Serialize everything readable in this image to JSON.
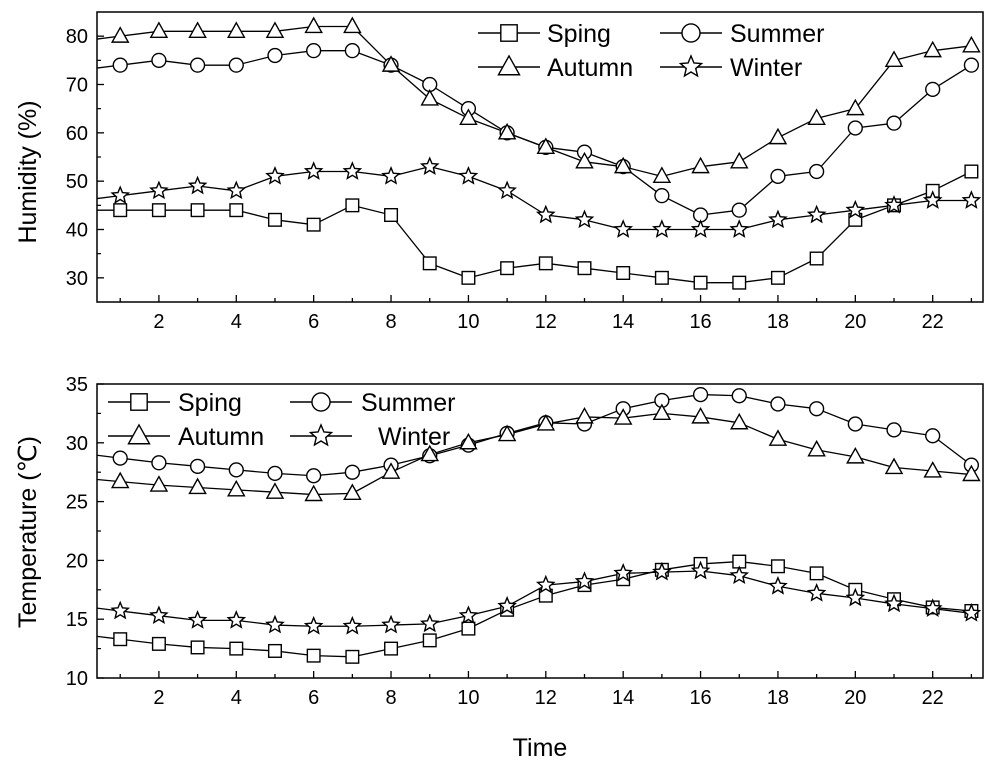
{
  "chart_data": [
    {
      "type": "line",
      "panel": "top",
      "title": "",
      "xlabel": "",
      "ylabel": "Humidity (%)",
      "xlim": [
        0.4,
        23.3
      ],
      "ylim": [
        25,
        85
      ],
      "xticks": [
        2,
        4,
        6,
        8,
        10,
        12,
        14,
        16,
        18,
        20,
        22
      ],
      "yticks": [
        30,
        40,
        50,
        60,
        70,
        80
      ],
      "grid": false,
      "legend_position": "top-right",
      "x": [
        1,
        2,
        3,
        4,
        5,
        6,
        7,
        8,
        9,
        10,
        11,
        12,
        13,
        14,
        15,
        16,
        17,
        18,
        19,
        20,
        21,
        22,
        23
      ],
      "series": [
        {
          "name": "Sping",
          "marker": "square",
          "values": [
            44,
            44,
            44,
            44,
            42,
            41,
            45,
            43,
            33,
            30,
            32,
            33,
            32,
            31,
            30,
            29,
            29,
            30,
            34,
            42,
            45,
            48,
            52
          ]
        },
        {
          "name": "Summer",
          "marker": "circle",
          "values": [
            74,
            75,
            74,
            74,
            76,
            77,
            77,
            74,
            70,
            65,
            60,
            57,
            56,
            53,
            47,
            43,
            44,
            51,
            52,
            61,
            62,
            69,
            74
          ]
        },
        {
          "name": "Autumn",
          "marker": "triangle",
          "values": [
            80,
            81,
            81,
            81,
            81,
            82,
            82,
            74,
            67,
            63,
            60,
            57,
            54,
            53,
            51,
            53,
            54,
            59,
            63,
            65,
            75,
            77,
            78
          ]
        },
        {
          "name": "Winter",
          "marker": "star",
          "values": [
            47,
            48,
            49,
            48,
            51,
            52,
            52,
            51,
            53,
            51,
            48,
            43,
            42,
            40,
            40,
            40,
            40,
            42,
            43,
            44,
            45,
            46,
            46
          ]
        }
      ]
    },
    {
      "type": "line",
      "panel": "bottom",
      "title": "",
      "xlabel": "Time",
      "ylabel": "Temperature (℃)",
      "xlim": [
        0.4,
        23.3
      ],
      "ylim": [
        10,
        35
      ],
      "xticks": [
        2,
        4,
        6,
        8,
        10,
        12,
        14,
        16,
        18,
        20,
        22
      ],
      "yticks": [
        10,
        15,
        20,
        25,
        30,
        35
      ],
      "grid": false,
      "legend_position": "top-left",
      "x": [
        1,
        2,
        3,
        4,
        5,
        6,
        7,
        8,
        9,
        10,
        11,
        12,
        13,
        14,
        15,
        16,
        17,
        18,
        19,
        20,
        21,
        22,
        23
      ],
      "series": [
        {
          "name": "Sping",
          "marker": "square",
          "values": [
            13.3,
            12.9,
            12.6,
            12.5,
            12.3,
            11.9,
            11.8,
            12.5,
            13.2,
            14.2,
            15.8,
            17.0,
            17.9,
            18.4,
            19.2,
            19.7,
            19.9,
            19.5,
            18.9,
            17.5,
            16.7,
            16.0,
            15.7
          ]
        },
        {
          "name": "Summer",
          "marker": "circle",
          "values": [
            28.7,
            28.3,
            28.0,
            27.7,
            27.4,
            27.2,
            27.5,
            28.1,
            28.9,
            29.8,
            30.8,
            31.7,
            31.6,
            32.9,
            33.6,
            34.1,
            34.0,
            33.3,
            32.9,
            31.6,
            31.1,
            30.6,
            28.1
          ]
        },
        {
          "name": "Autumn",
          "marker": "triangle",
          "values": [
            26.7,
            26.4,
            26.2,
            26.0,
            25.8,
            25.6,
            25.7,
            27.5,
            29.0,
            30.0,
            30.7,
            31.6,
            32.2,
            32.1,
            32.5,
            32.2,
            31.7,
            30.3,
            29.4,
            28.8,
            27.9,
            27.6,
            27.3
          ]
        },
        {
          "name": "Winter",
          "marker": "star",
          "values": [
            15.7,
            15.3,
            14.9,
            14.9,
            14.5,
            14.4,
            14.4,
            14.5,
            14.6,
            15.3,
            16.1,
            17.9,
            18.2,
            18.9,
            19.0,
            19.1,
            18.7,
            17.8,
            17.2,
            16.8,
            16.3,
            15.9,
            15.5
          ]
        }
      ]
    }
  ]
}
